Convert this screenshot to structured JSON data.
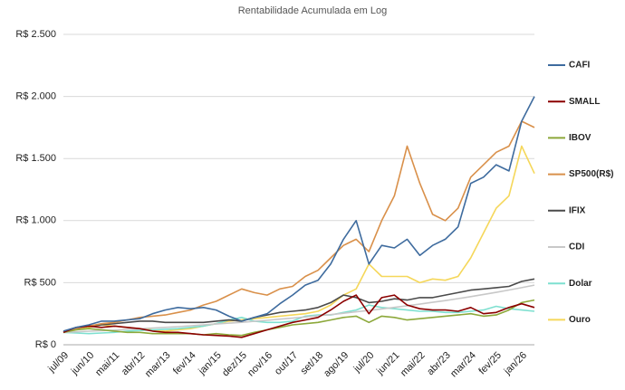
{
  "chart_data": {
    "type": "line",
    "title": "Rentabilidade Acumulada em Log",
    "categories": [
      "jul/09",
      null,
      "jun/10",
      null,
      "mai/11",
      null,
      "abr/12",
      null,
      "mar/13",
      null,
      "fev/14",
      null,
      "jan/15",
      null,
      "dez/15",
      null,
      "nov/16",
      null,
      "out/17",
      null,
      "set/18",
      null,
      "ago/19",
      null,
      "jul/20",
      null,
      "jun/21",
      null,
      "mai/22",
      null,
      "abr/23",
      null,
      "mar/24",
      null,
      "fev/25",
      null,
      "jan/26",
      null
    ],
    "ylim": [
      0,
      2500
    ],
    "yticks": [
      {
        "value": 0,
        "label": "R$ 0"
      },
      {
        "value": 500,
        "label": "R$ 500"
      },
      {
        "value": 1000,
        "label": "R$ 1.000"
      },
      {
        "value": 1500,
        "label": "R$ 1.500"
      },
      {
        "value": 2000,
        "label": "R$ 2.000"
      },
      {
        "value": 2500,
        "label": "R$ 2.500"
      }
    ],
    "grid": true,
    "legend": "right",
    "series": [
      {
        "name": "CAFI",
        "color": "#3e6b9e",
        "values": [
          110,
          140,
          160,
          190,
          190,
          200,
          210,
          250,
          280,
          300,
          290,
          300,
          280,
          230,
          190,
          220,
          250,
          330,
          400,
          480,
          520,
          650,
          850,
          1000,
          650,
          800,
          780,
          850,
          720,
          800,
          850,
          950,
          1300,
          1350,
          1450,
          1400,
          1800,
          2000
        ]
      },
      {
        "name": "SMALL",
        "color": "#8b0000",
        "values": [
          100,
          140,
          150,
          140,
          150,
          140,
          130,
          110,
          100,
          100,
          90,
          80,
          75,
          70,
          60,
          90,
          120,
          150,
          180,
          200,
          220,
          280,
          350,
          400,
          250,
          380,
          400,
          320,
          290,
          280,
          280,
          270,
          300,
          250,
          260,
          300,
          330,
          300
        ]
      },
      {
        "name": "IBOV",
        "color": "#8ca83a",
        "values": [
          100,
          120,
          130,
          120,
          110,
          100,
          100,
          90,
          90,
          90,
          90,
          80,
          90,
          80,
          75,
          100,
          120,
          140,
          160,
          170,
          180,
          200,
          220,
          230,
          180,
          230,
          220,
          200,
          210,
          220,
          230,
          240,
          250,
          230,
          240,
          280,
          340,
          360
        ]
      },
      {
        "name": "SP500(R$)",
        "color": "#d9904a",
        "values": [
          100,
          130,
          150,
          170,
          180,
          200,
          220,
          230,
          240,
          260,
          280,
          320,
          350,
          400,
          450,
          420,
          400,
          450,
          470,
          550,
          600,
          700,
          800,
          850,
          750,
          1000,
          1200,
          1600,
          1300,
          1050,
          1000,
          1100,
          1350,
          1450,
          1550,
          1600,
          1800,
          1750
        ]
      },
      {
        "name": "IFIX",
        "color": "#4a4a4a",
        "values": [
          100,
          130,
          150,
          160,
          170,
          180,
          190,
          190,
          180,
          180,
          180,
          180,
          190,
          200,
          190,
          220,
          240,
          260,
          270,
          280,
          300,
          340,
          400,
          380,
          340,
          350,
          370,
          360,
          380,
          380,
          400,
          420,
          440,
          450,
          460,
          470,
          510,
          530
        ]
      },
      {
        "name": "CDI",
        "color": "#c8c8c8",
        "values": [
          100,
          104,
          109,
          114,
          118,
          124,
          129,
          135,
          140,
          146,
          153,
          160,
          167,
          174,
          181,
          189,
          197,
          206,
          214,
          224,
          233,
          243,
          254,
          265,
          276,
          288,
          301,
          314,
          327,
          342,
          356,
          372,
          388,
          405,
          422,
          441,
          460,
          480
        ]
      },
      {
        "name": "Dolar",
        "color": "#7ee0d0",
        "values": [
          100,
          95,
          90,
          95,
          100,
          110,
          115,
          120,
          125,
          130,
          140,
          150,
          170,
          200,
          220,
          190,
          180,
          180,
          190,
          230,
          240,
          240,
          260,
          280,
          320,
          300,
          290,
          280,
          270,
          270,
          260,
          260,
          270,
          280,
          310,
          290,
          280,
          270
        ]
      },
      {
        "name": "Ouro",
        "color": "#f5d75a",
        "values": [
          100,
          120,
          140,
          160,
          150,
          140,
          130,
          120,
          110,
          120,
          130,
          150,
          170,
          190,
          200,
          210,
          220,
          230,
          240,
          250,
          270,
          320,
          400,
          450,
          650,
          550,
          550,
          550,
          500,
          530,
          520,
          550,
          700,
          900,
          1100,
          1200,
          1600,
          1380
        ]
      }
    ]
  }
}
